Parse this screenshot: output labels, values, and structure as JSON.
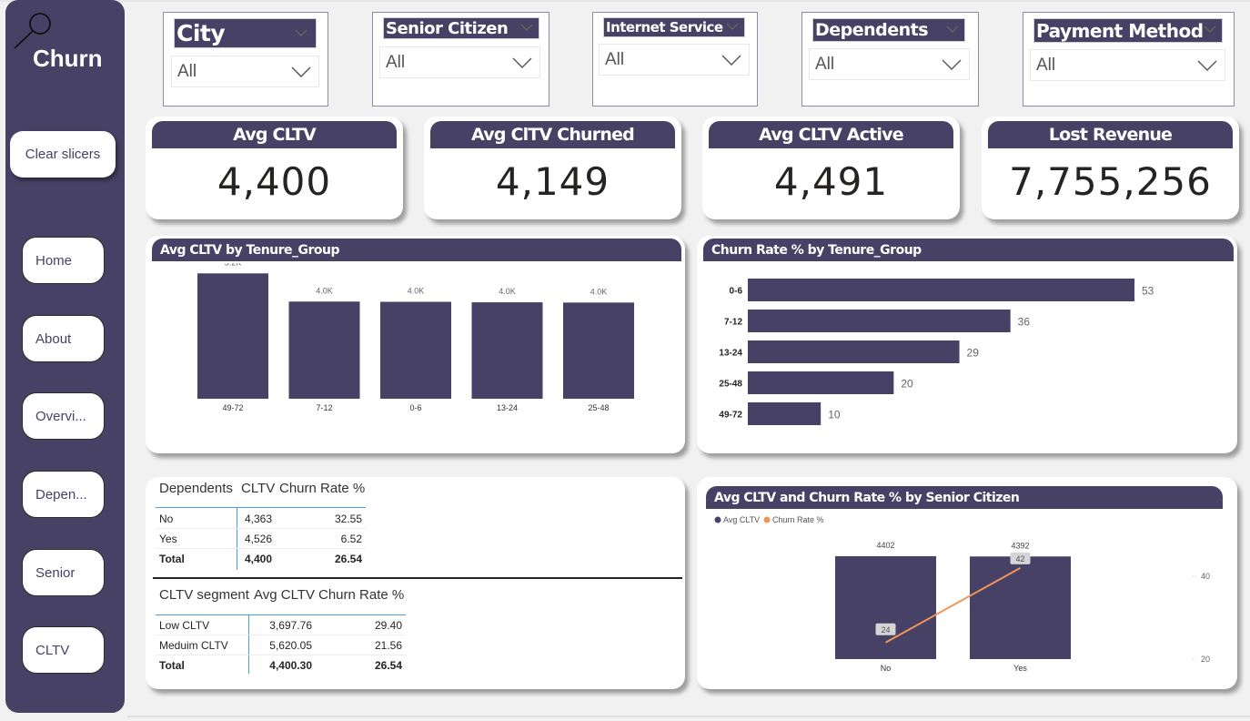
{
  "sidebar": {
    "brand": "Churn",
    "clear_slicers": "Clear slicers",
    "nav": [
      "Home",
      "About",
      "Overvi...",
      "Depen...",
      "Senior",
      "CLTV"
    ]
  },
  "slicers": [
    {
      "title": "City",
      "value": "All"
    },
    {
      "title": "Senior Citizen",
      "value": "All"
    },
    {
      "title": "Internet Service",
      "value": "All"
    },
    {
      "title": "Dependents",
      "value": "All"
    },
    {
      "title": "Payment Method",
      "value": "All"
    }
  ],
  "kpis": [
    {
      "title": "Avg CLTV",
      "value": "4,400"
    },
    {
      "title": "Avg ClTV Churned",
      "value": "4,149"
    },
    {
      "title": "Avg CLTV Active",
      "value": "4,491"
    },
    {
      "title": "Lost Revenue",
      "value": "7,755,256"
    }
  ],
  "colors": {
    "primary": "#474166",
    "line": "#f0955a",
    "page": "#f1f1f1"
  },
  "chart_data": [
    {
      "type": "bar",
      "title": "Avg CLTV by Tenure_Group",
      "categories": [
        "49-72",
        "7-12",
        "0-6",
        "13-24",
        "25-48"
      ],
      "values": [
        5200,
        4030,
        4020,
        4000,
        3990
      ],
      "labels": [
        "5.2K",
        "4.0K",
        "4.0K",
        "4.0K",
        "4.0K"
      ],
      "xlabel": "",
      "ylabel": "",
      "ylim": [
        0,
        5400
      ]
    },
    {
      "type": "bar",
      "orientation": "horizontal",
      "title": "Churn Rate % by Tenure_Group",
      "categories": [
        "0-6",
        "7-12",
        "13-24",
        "25-48",
        "49-72"
      ],
      "values": [
        53,
        36,
        29,
        20,
        10
      ],
      "xlabel": "",
      "ylabel": "",
      "xlim": [
        0,
        55
      ]
    },
    {
      "type": "bar",
      "title": "Avg CLTV and Churn Rate % by Senior Citizen",
      "categories": [
        "No",
        "Yes"
      ],
      "legend": [
        "Avg CLTV",
        "Churn Rate %"
      ],
      "legend_position": "top-left",
      "series": [
        {
          "name": "Avg CLTV",
          "type": "bar",
          "values": [
            4402,
            4392
          ]
        },
        {
          "name": "Churn Rate %",
          "type": "line",
          "values": [
            24,
            42
          ],
          "axis": "right"
        }
      ],
      "y2_ticks": [
        20,
        40
      ],
      "y2lim": [
        18,
        43
      ]
    }
  ],
  "tables": {
    "dependents": {
      "headers": [
        "Dependents",
        "CLTV",
        "Churn Rate %"
      ],
      "rows": [
        [
          "No",
          "4,363",
          "32.55"
        ],
        [
          "Yes",
          "4,526",
          "6.52"
        ]
      ],
      "total": [
        "Total",
        "4,400",
        "26.54"
      ]
    },
    "cltv_segment": {
      "headers": [
        "CLTV segment",
        "Avg CLTV",
        "Churn Rate %"
      ],
      "rows": [
        [
          "Low CLTV",
          "3,697.76",
          "29.40"
        ],
        [
          "Meduim CLTV",
          "5,620.05",
          "21.56"
        ]
      ],
      "total": [
        "Total",
        "4,400.30",
        "26.54"
      ]
    }
  }
}
